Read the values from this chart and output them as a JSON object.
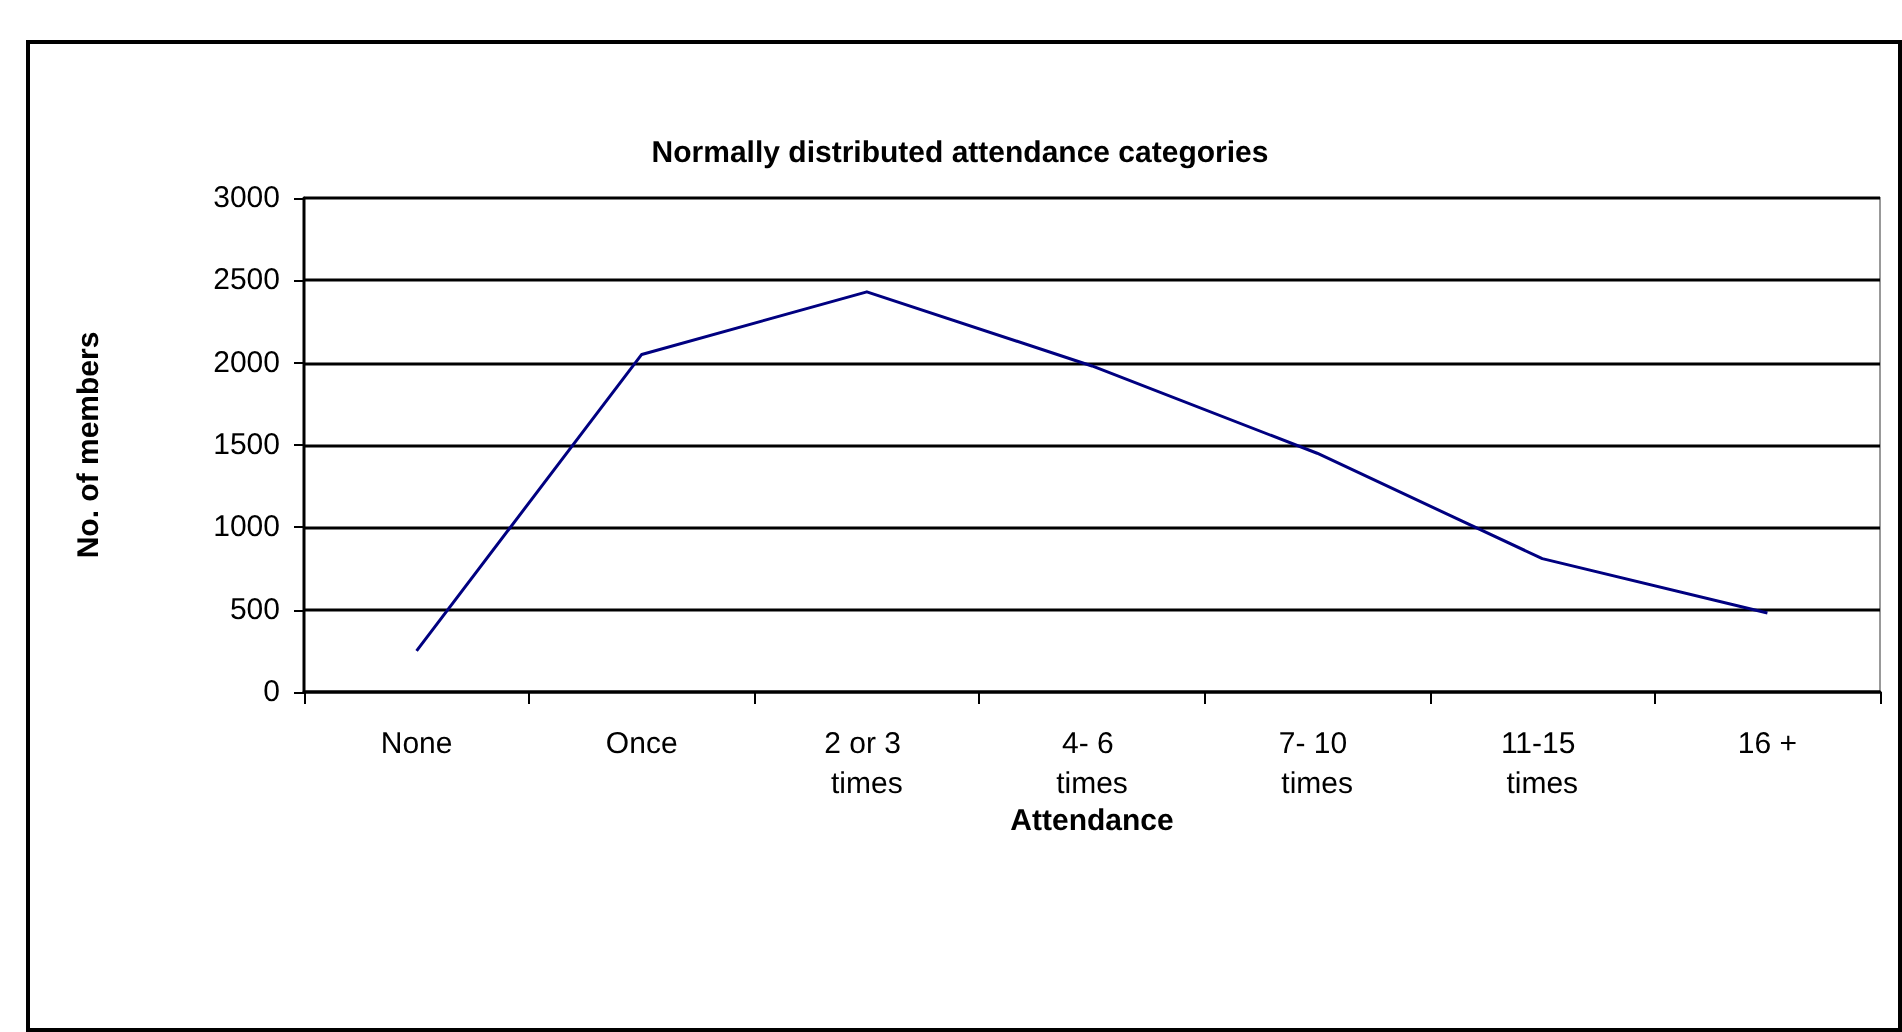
{
  "chart_data": {
    "type": "line",
    "title": "Normally distributed attendance categories",
    "xlabel": "Attendance",
    "ylabel": "No. of members",
    "categories": [
      "None",
      "Once",
      "2 or 3 times",
      "4- 6 times",
      "7- 10 times",
      "11-15 times",
      "16 +"
    ],
    "series": [
      {
        "color": "#000080",
        "values": [
          250,
          2050,
          2430,
          1980,
          1450,
          810,
          480
        ]
      }
    ],
    "ylim": [
      0,
      3000
    ],
    "yticks": [
      0,
      500,
      1000,
      1500,
      2000,
      2500,
      3000
    ],
    "grid": "y",
    "marker": "none",
    "line_style": "solid"
  }
}
